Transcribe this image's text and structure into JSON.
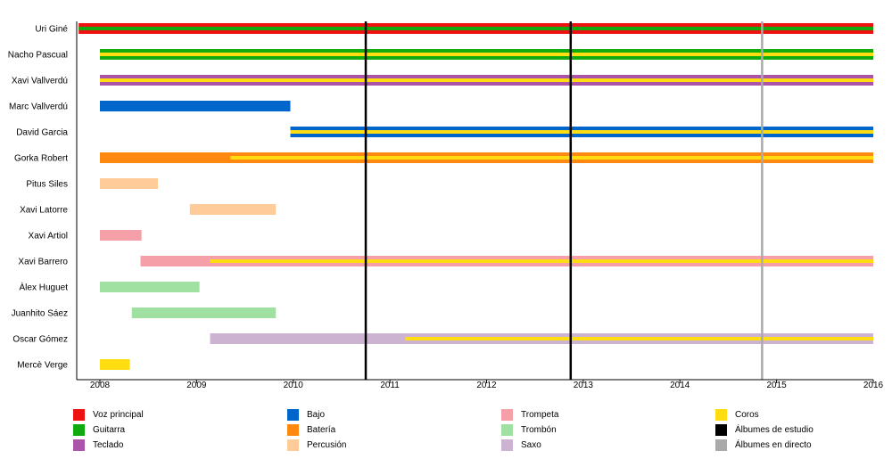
{
  "chart_data": {
    "type": "timeline",
    "title": "",
    "xlim": [
      2008,
      2016
    ],
    "x_ticks": [
      "2008",
      "2009",
      "2010",
      "2011",
      "2012",
      "2013",
      "2014",
      "2015",
      "2016"
    ],
    "members": [
      "Uri Giné",
      "Nacho Pascual",
      "Xavi Vallverdú",
      "Marc Vallverdú",
      "David Garcia",
      "Gorka Robert",
      "Pitus Siles",
      "Xavi Latorre",
      "Xavi Artiol",
      "Xavi Barrero",
      "Àlex Huguet",
      "Juanhito Sáez",
      "Oscar Gómez",
      "Mercè Verge"
    ],
    "roles": {
      "voz": {
        "label": "Voz principal",
        "color": "#ee1111"
      },
      "guitarra": {
        "label": "Guitarra",
        "color": "#11aa11"
      },
      "teclado": {
        "label": "Teclado",
        "color": "#aa55aa"
      },
      "bajo": {
        "label": "Bajo",
        "color": "#0066cc"
      },
      "bateria": {
        "label": "Batería",
        "color": "#ff8811"
      },
      "percusion": {
        "label": "Percusión",
        "color": "#ffcc99"
      },
      "trompeta": {
        "label": "Trompeta",
        "color": "#f5a0a8"
      },
      "trombon": {
        "label": "Trombón",
        "color": "#a0e0a0"
      },
      "saxo": {
        "label": "Saxo",
        "color": "#ccb3d1"
      },
      "coros": {
        "label": "Coros",
        "color": "#ffdd11"
      },
      "estudio": {
        "label": "Álbumes de estudio",
        "color": "#000000"
      },
      "directo": {
        "label": "Álbumes en directo",
        "color": "#aaaaaa"
      }
    },
    "legend_order": [
      "voz",
      "guitarra",
      "teclado",
      "bajo",
      "bateria",
      "percusion",
      "trompeta",
      "trombon",
      "saxo",
      "coros",
      "estudio",
      "directo"
    ],
    "bars": [
      {
        "member": "Uri Giné",
        "role": "voz",
        "start": 2007.78,
        "end": 2016,
        "stripe": "guitarra",
        "stripe_start": 2007.78
      },
      {
        "member": "Nacho Pascual",
        "role": "guitarra",
        "start": 2008,
        "end": 2016,
        "stripe": "coros",
        "stripe_start": 2008
      },
      {
        "member": "Xavi Vallverdú",
        "role": "teclado",
        "start": 2008,
        "end": 2016,
        "stripe": "coros",
        "stripe_start": 2008
      },
      {
        "member": "Marc Vallverdú",
        "role": "bajo",
        "start": 2008,
        "end": 2009.97
      },
      {
        "member": "David Garcia",
        "role": "bajo",
        "start": 2009.97,
        "end": 2016,
        "stripe": "coros",
        "stripe_start": 2009.97
      },
      {
        "member": "Gorka Robert",
        "role": "bateria",
        "start": 2008,
        "end": 2016,
        "stripe": "coros",
        "stripe_start": 2009.35
      },
      {
        "member": "Pitus Siles",
        "role": "percusion",
        "start": 2008,
        "end": 2008.6
      },
      {
        "member": "Xavi Latorre",
        "role": "percusion",
        "start": 2008.93,
        "end": 2009.82
      },
      {
        "member": "Xavi Artiol",
        "role": "trompeta",
        "start": 2008,
        "end": 2008.43
      },
      {
        "member": "Xavi Barrero",
        "role": "trompeta",
        "start": 2008.42,
        "end": 2016,
        "stripe": "coros",
        "stripe_start": 2009.14
      },
      {
        "member": "Àlex Huguet",
        "role": "trombon",
        "start": 2008,
        "end": 2009.03
      },
      {
        "member": "Juanhito Sáez",
        "role": "trombon",
        "start": 2008.33,
        "end": 2009.82
      },
      {
        "member": "Oscar Gómez",
        "role": "saxo",
        "start": 2009.14,
        "end": 2016,
        "stripe": "coros",
        "stripe_start": 2011.16
      },
      {
        "member": "Mercè Verge",
        "role": "coros",
        "start": 2008,
        "end": 2008.31
      }
    ],
    "events": [
      {
        "x": 2010.75,
        "role": "estudio"
      },
      {
        "x": 2012.87,
        "role": "estudio"
      },
      {
        "x": 2014.85,
        "role": "directo"
      }
    ],
    "grid": false,
    "legend_position": "bottom"
  }
}
